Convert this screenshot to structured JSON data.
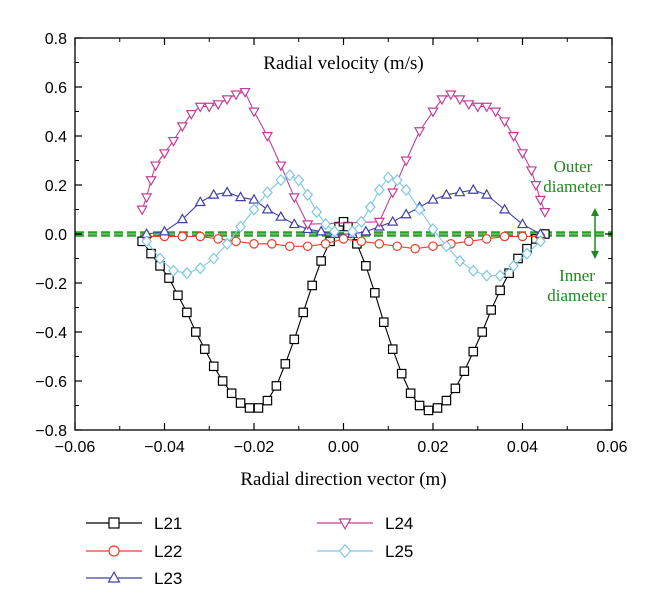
{
  "chart_data": {
    "type": "line",
    "title": "Radial velocity (m/s)",
    "xlabel": "Radial direction vector (m)",
    "ylabel": "",
    "xlim": [
      -0.06,
      0.06
    ],
    "ylim": [
      -0.8,
      0.8
    ],
    "xticks": [
      -0.06,
      -0.04,
      -0.02,
      0.0,
      0.02,
      0.04,
      0.06
    ],
    "xtick_labels": [
      "−0.06",
      "−0.04",
      "−0.02",
      "0.00",
      "0.02",
      "0.04",
      "0.06"
    ],
    "yticks": [
      -0.8,
      -0.6,
      -0.4,
      -0.2,
      0.0,
      0.2,
      0.4,
      0.6,
      0.8
    ],
    "ytick_labels": [
      "−0.8",
      "−0.6",
      "−0.4",
      "−0.2",
      "0.0",
      "0.2",
      "0.4",
      "0.6",
      "0.8"
    ],
    "grid": false,
    "legend_position": "bottom",
    "series": [
      {
        "name": "L21",
        "color": "#000000",
        "marker": "square",
        "x": [
          -0.045,
          -0.043,
          -0.041,
          -0.039,
          -0.037,
          -0.035,
          -0.033,
          -0.031,
          -0.029,
          -0.027,
          -0.025,
          -0.023,
          -0.021,
          -0.019,
          -0.017,
          -0.015,
          -0.013,
          -0.011,
          -0.009,
          -0.007,
          -0.005,
          -0.003,
          -0.001,
          0.0,
          0.001,
          0.003,
          0.005,
          0.007,
          0.009,
          0.011,
          0.013,
          0.015,
          0.017,
          0.019,
          0.021,
          0.023,
          0.025,
          0.027,
          0.029,
          0.031,
          0.033,
          0.035,
          0.037,
          0.039,
          0.041,
          0.043,
          0.045
        ],
        "y": [
          -0.03,
          -0.08,
          -0.13,
          -0.18,
          -0.25,
          -0.32,
          -0.4,
          -0.47,
          -0.54,
          -0.6,
          -0.65,
          -0.69,
          -0.71,
          -0.71,
          -0.68,
          -0.62,
          -0.53,
          -0.43,
          -0.32,
          -0.21,
          -0.11,
          -0.03,
          0.03,
          0.05,
          0.03,
          -0.04,
          -0.13,
          -0.24,
          -0.36,
          -0.47,
          -0.57,
          -0.65,
          -0.7,
          -0.72,
          -0.71,
          -0.68,
          -0.63,
          -0.56,
          -0.48,
          -0.4,
          -0.31,
          -0.23,
          -0.16,
          -0.1,
          -0.06,
          -0.02,
          0.0
        ]
      },
      {
        "name": "L22",
        "color": "#e8402a",
        "marker": "circle",
        "x": [
          -0.044,
          -0.04,
          -0.036,
          -0.032,
          -0.028,
          -0.024,
          -0.02,
          -0.016,
          -0.012,
          -0.008,
          -0.004,
          0.0,
          0.004,
          0.008,
          0.012,
          0.016,
          0.02,
          0.024,
          0.028,
          0.032,
          0.036,
          0.04,
          0.044
        ],
        "y": [
          -0.01,
          -0.01,
          -0.01,
          -0.01,
          -0.02,
          -0.03,
          -0.04,
          -0.04,
          -0.05,
          -0.05,
          -0.04,
          -0.02,
          -0.03,
          -0.04,
          -0.05,
          -0.06,
          -0.05,
          -0.04,
          -0.03,
          -0.02,
          -0.01,
          -0.01,
          -0.01
        ]
      },
      {
        "name": "L23",
        "color": "#4040a8",
        "marker": "triangle-up",
        "x": [
          -0.044,
          -0.04,
          -0.036,
          -0.032,
          -0.029,
          -0.026,
          -0.023,
          -0.02,
          -0.017,
          -0.014,
          -0.011,
          -0.008,
          -0.005,
          -0.002,
          0.002,
          0.005,
          0.008,
          0.011,
          0.014,
          0.017,
          0.02,
          0.023,
          0.026,
          0.029,
          0.032,
          0.036,
          0.04,
          0.044
        ],
        "y": [
          0.0,
          0.01,
          0.06,
          0.13,
          0.16,
          0.17,
          0.15,
          0.14,
          0.1,
          0.07,
          0.04,
          0.02,
          0.01,
          0.0,
          0.0,
          0.01,
          0.03,
          0.05,
          0.08,
          0.11,
          0.14,
          0.16,
          0.17,
          0.18,
          0.16,
          0.1,
          0.04,
          0.0
        ]
      },
      {
        "name": "L24",
        "color": "#c0409a",
        "marker": "triangle-down",
        "x": [
          -0.045,
          -0.044,
          -0.043,
          -0.042,
          -0.04,
          -0.038,
          -0.036,
          -0.034,
          -0.032,
          -0.03,
          -0.028,
          -0.026,
          -0.024,
          -0.022,
          -0.02,
          -0.017,
          -0.014,
          -0.011,
          -0.008,
          0.008,
          0.011,
          0.014,
          0.017,
          0.02,
          0.022,
          0.024,
          0.026,
          0.028,
          0.03,
          0.032,
          0.034,
          0.036,
          0.038,
          0.04,
          0.042,
          0.043,
          0.044,
          0.045
        ],
        "y": [
          0.1,
          0.15,
          0.22,
          0.28,
          0.33,
          0.38,
          0.44,
          0.49,
          0.52,
          0.52,
          0.53,
          0.55,
          0.57,
          0.58,
          0.5,
          0.4,
          0.28,
          0.15,
          0.04,
          0.05,
          0.17,
          0.3,
          0.42,
          0.5,
          0.55,
          0.57,
          0.55,
          0.53,
          0.52,
          0.52,
          0.5,
          0.46,
          0.4,
          0.33,
          0.26,
          0.2,
          0.14,
          0.09
        ]
      },
      {
        "name": "L25",
        "color": "#7ec8e3",
        "marker": "diamond",
        "x": [
          -0.044,
          -0.041,
          -0.038,
          -0.035,
          -0.032,
          -0.029,
          -0.026,
          -0.023,
          -0.02,
          -0.017,
          -0.014,
          -0.012,
          -0.01,
          -0.008,
          -0.006,
          -0.004,
          -0.002,
          0.002,
          0.004,
          0.006,
          0.008,
          0.01,
          0.012,
          0.014,
          0.017,
          0.02,
          0.023,
          0.026,
          0.029,
          0.032,
          0.035,
          0.038,
          0.041,
          0.044
        ],
        "y": [
          -0.03,
          -0.1,
          -0.15,
          -0.16,
          -0.14,
          -0.1,
          -0.04,
          0.03,
          0.1,
          0.17,
          0.22,
          0.24,
          0.22,
          0.16,
          0.09,
          0.04,
          0.01,
          0.01,
          0.05,
          0.11,
          0.18,
          0.23,
          0.22,
          0.18,
          0.1,
          0.02,
          -0.05,
          -0.11,
          -0.15,
          -0.17,
          -0.17,
          -0.13,
          -0.08,
          -0.03
        ]
      }
    ],
    "reference_line": {
      "y": 0.0,
      "color": "#2aa02a",
      "style": "dashed"
    },
    "annotations": [
      {
        "lines": [
          "Outer",
          "diameter"
        ],
        "color": "#1e8a1e"
      },
      {
        "lines": [
          "Inner",
          "diameter"
        ],
        "color": "#1e8a1e"
      }
    ]
  }
}
